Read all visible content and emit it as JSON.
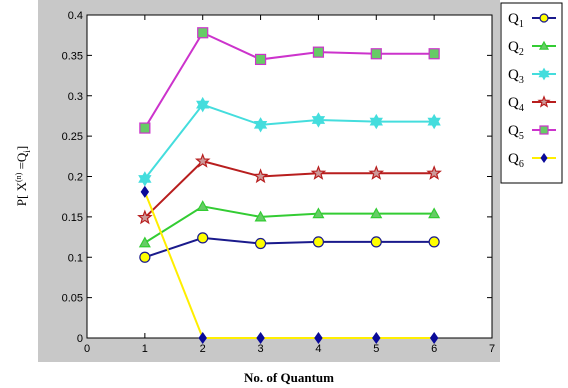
{
  "chart_data": {
    "type": "line",
    "xlabel": "No. of Quantum",
    "ylabel_parts": [
      "P[ X",
      "(n)",
      " =Q",
      "i",
      "]"
    ],
    "xlim": [
      0,
      7
    ],
    "ylim": [
      0,
      0.4
    ],
    "xticks": [
      "0",
      "1",
      "2",
      "3",
      "4",
      "5",
      "6",
      "7"
    ],
    "yticks": [
      "0",
      "0.05",
      "0.1",
      "0.15",
      "0.2",
      "0.25",
      "0.3",
      "0.35",
      "0.4"
    ],
    "grid": false,
    "legend_position": "right",
    "x": [
      1,
      2,
      3,
      4,
      5,
      6
    ],
    "series": [
      {
        "name": "Q",
        "sub": "1",
        "color": "#1a1a8c",
        "marker": "circle",
        "fill": "#ffff00",
        "values": [
          0.1,
          0.124,
          0.117,
          0.119,
          0.119,
          0.119
        ]
      },
      {
        "name": "Q",
        "sub": "2",
        "color": "#33cc33",
        "marker": "triangle",
        "fill": "#66cc66",
        "values": [
          0.118,
          0.163,
          0.15,
          0.154,
          0.154,
          0.154
        ]
      },
      {
        "name": "Q",
        "sub": "3",
        "color": "#44dddd",
        "marker": "hexagram",
        "fill": "#44dddd",
        "values": [
          0.197,
          0.289,
          0.264,
          0.27,
          0.268,
          0.268
        ]
      },
      {
        "name": "Q",
        "sub": "4",
        "color": "#b81e1e",
        "marker": "star",
        "fill": "#cc9999",
        "values": [
          0.149,
          0.219,
          0.2,
          0.204,
          0.204,
          0.204
        ]
      },
      {
        "name": "Q",
        "sub": "5",
        "color": "#cc33cc",
        "marker": "square",
        "fill": "#66cc66",
        "values": [
          0.26,
          0.378,
          0.345,
          0.354,
          0.352,
          0.352
        ]
      },
      {
        "name": "Q",
        "sub": "6",
        "color": "#ffee00",
        "marker": "diamond",
        "fill": "#0a0a99",
        "values": [
          0.181,
          0.0,
          0.0,
          0.0,
          0.0,
          0.0
        ]
      }
    ]
  }
}
